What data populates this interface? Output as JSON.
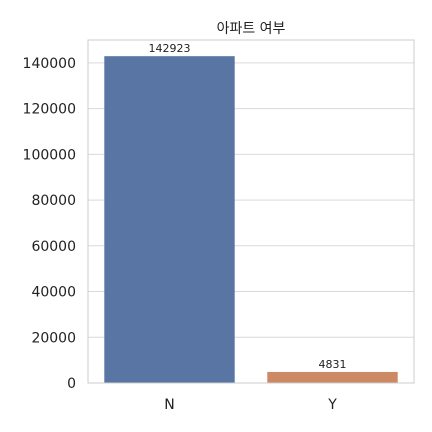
{
  "chart_data": {
    "type": "bar",
    "title": "아파트 여부",
    "categories": [
      "N",
      "Y"
    ],
    "values": [
      142923,
      4831
    ],
    "data_labels": [
      "142923",
      "4831"
    ],
    "xlabel": "",
    "ylabel": "",
    "ylim": [
      0,
      150000
    ],
    "yticks": [
      0,
      20000,
      40000,
      60000,
      80000,
      100000,
      120000,
      140000
    ],
    "ytick_labels": [
      "0",
      "20000",
      "40000",
      "60000",
      "80000",
      "100000",
      "120000",
      "140000"
    ],
    "grid": true,
    "legend": "none",
    "colors": {
      "N": "#5875a4",
      "Y": "#cc8963",
      "grid": "#d9d9d9",
      "frame": "#cccccc",
      "text": "#222222"
    }
  }
}
